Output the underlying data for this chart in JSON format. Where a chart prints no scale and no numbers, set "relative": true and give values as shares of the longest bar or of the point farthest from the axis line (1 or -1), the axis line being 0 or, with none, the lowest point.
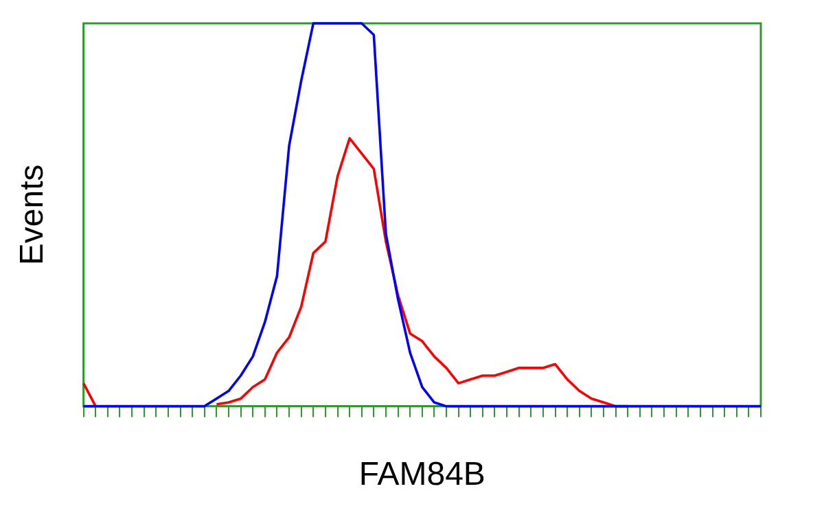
{
  "chart_data": {
    "type": "line",
    "xlabel": "FAM84B",
    "ylabel": "Events",
    "relative": true,
    "grid": false,
    "legend": false,
    "marker": "none",
    "categories": [
      null,
      null,
      null,
      null,
      null,
      null,
      null,
      null,
      null,
      null,
      null,
      null,
      null,
      null,
      null,
      null,
      null,
      null,
      null,
      null,
      null,
      null,
      null,
      null,
      null,
      null,
      null,
      null,
      null,
      null,
      null,
      null,
      null,
      null,
      null,
      null,
      null,
      null,
      null,
      null,
      null,
      null,
      null,
      null,
      null,
      null,
      null,
      null,
      null,
      null,
      null,
      null,
      null,
      null,
      null,
      null,
      null
    ],
    "series": [
      {
        "color": "#0000ff",
        "values": [
          0,
          0,
          0,
          0,
          0,
          0,
          0,
          0,
          0,
          0,
          0,
          0.02,
          0.04,
          0.08,
          0.13,
          0.22,
          0.34,
          0.68,
          0.85,
          1,
          1,
          1,
          1,
          1,
          0.97,
          0.45,
          0.28,
          0.14,
          0.05,
          0.01,
          0,
          0,
          0,
          0,
          0,
          0,
          0,
          0,
          0,
          0,
          0,
          0,
          0,
          0,
          0,
          0,
          0,
          0,
          0,
          0,
          0,
          0,
          0,
          0,
          0,
          0,
          0
        ]
      },
      {
        "color": "#ff0000",
        "values": [
          0.06,
          0,
          null,
          null,
          null,
          null,
          null,
          null,
          null,
          null,
          null,
          0.005,
          0.01,
          0.02,
          0.05,
          0.07,
          0.14,
          0.18,
          0.26,
          0.4,
          0.43,
          0.6,
          0.7,
          0.66,
          0.62,
          0.43,
          0.29,
          0.19,
          0.17,
          0.13,
          0.1,
          0.06,
          0.07,
          0.08,
          0.08,
          0.09,
          0.1,
          0.1,
          0.1,
          0.11,
          0.07,
          0.04,
          0.02,
          0.01,
          0,
          0,
          null,
          null,
          null,
          null,
          null,
          null,
          null,
          null,
          null,
          null,
          null
        ]
      }
    ]
  }
}
